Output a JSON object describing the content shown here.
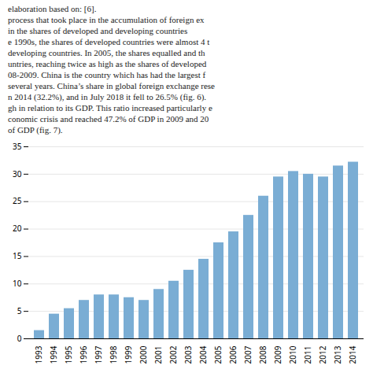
{
  "chart_data": {
    "type": "bar",
    "annotations": [
      "elaboration based on: [6].",
      "process that took place in the accumulation of foreign ex",
      "in the shares of developed and developing countries",
      "e 1990s, the shares of developed countries were almost 4 t",
      "developing countries. In 2005, the shares equalled and th",
      "untries, reaching twice as high as the shares of developed",
      "08-2009. China is the country which has had the largest f",
      "several years. China’s share in global foreign exchange rese",
      "n 2014 (32.2%), and in July 2018 it fell to 26.5% (fig. 6).",
      "gh in relation to its GDP. This ratio increased particularly e",
      "conomic crisis and reached 47.2% of GDP in 2009 and 20",
      "of GDP (fig. 7)."
    ],
    "categories": [
      "1993",
      "1994",
      "1995",
      "1996",
      "1997",
      "1998",
      "1999",
      "2000",
      "2001",
      "2002",
      "2003",
      "2004",
      "2005",
      "2006",
      "2007",
      "2008",
      "2009",
      "2010",
      "2011",
      "2012",
      "2013",
      "2014"
    ],
    "values": [
      1.5,
      4.5,
      5.5,
      7.0,
      8.0,
      8.0,
      7.5,
      7.0,
      9.0,
      10.5,
      12.5,
      14.5,
      17.5,
      19.5,
      22.5,
      26.0,
      29.5,
      30.5,
      30.0,
      29.5,
      31.5,
      32.2
    ],
    "color": "#7aadd4",
    "ylim": [
      0,
      35
    ],
    "yticks": [
      0,
      5,
      10,
      15,
      20,
      25,
      30,
      35
    ],
    "grid": true
  }
}
